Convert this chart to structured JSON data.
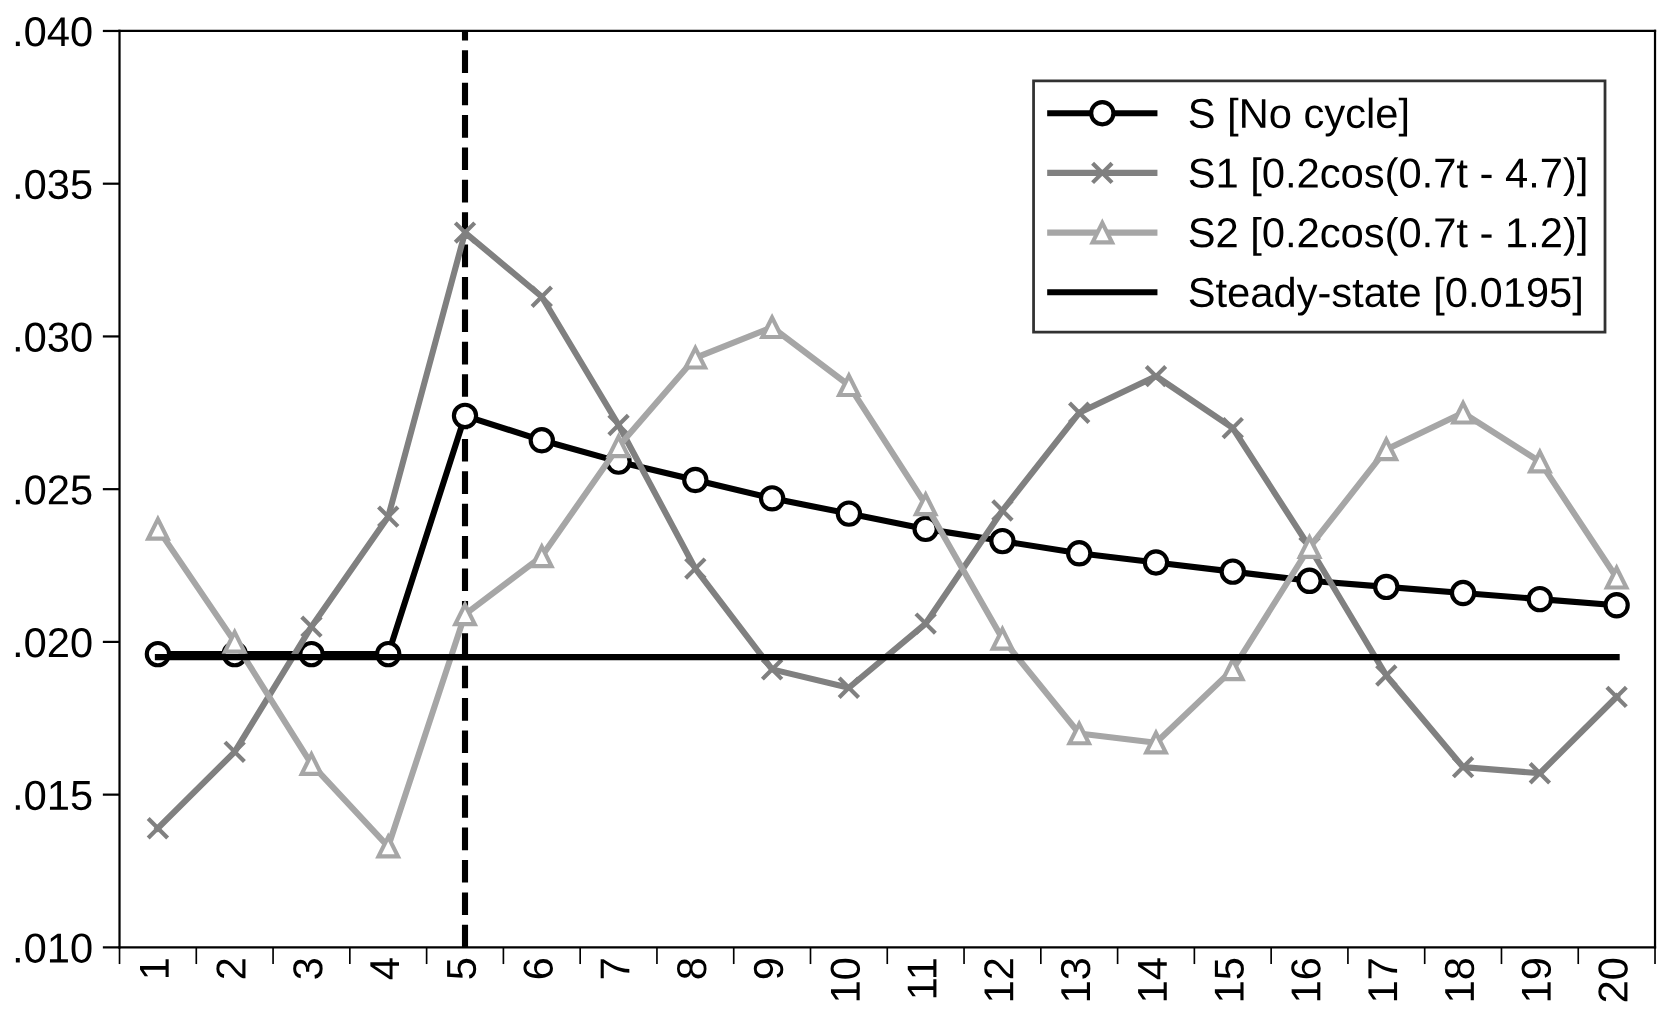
{
  "chart_data": {
    "type": "line",
    "categories": [
      "1",
      "2",
      "3",
      "4",
      "5",
      "6",
      "7",
      "8",
      "9",
      "10",
      "11",
      "12",
      "13",
      "14",
      "15",
      "16",
      "17",
      "18",
      "19",
      "20"
    ],
    "series": [
      {
        "name": "S [No cycle]",
        "color": "#000000",
        "marker": "circle",
        "values": [
          0.0196,
          0.0196,
          0.0196,
          0.0196,
          0.0274,
          0.0266,
          0.0259,
          0.0253,
          0.0247,
          0.0242,
          0.0237,
          0.0233,
          0.0229,
          0.0226,
          0.0223,
          0.022,
          0.0218,
          0.0216,
          0.0214,
          0.0212
        ]
      },
      {
        "name": "S1 [0.2cos(0.7t - 4.7)]",
        "color": "#808080",
        "marker": "cross",
        "values": [
          0.0139,
          0.0164,
          0.0205,
          0.0241,
          0.0334,
          0.0313,
          0.0271,
          0.0224,
          0.0191,
          0.0185,
          0.0206,
          0.0243,
          0.0275,
          0.0287,
          0.027,
          0.0231,
          0.0189,
          0.0159,
          0.0157,
          0.0182
        ]
      },
      {
        "name": "S2 [0.2cos(0.7t - 1.2)]",
        "color": "#a6a6a6",
        "marker": "triangle",
        "values": [
          0.0237,
          0.02,
          0.016,
          0.0133,
          0.0209,
          0.0228,
          0.0264,
          0.0293,
          0.0303,
          0.0284,
          0.0245,
          0.0201,
          0.017,
          0.0167,
          0.0191,
          0.0231,
          0.0263,
          0.0275,
          0.0259,
          0.0221
        ]
      },
      {
        "name": "Steady-state [0.0195]",
        "color": "#000000",
        "marker": "none",
        "values": [
          0.0195,
          0.0195,
          0.0195,
          0.0195,
          0.0195,
          0.0195,
          0.0195,
          0.0195,
          0.0195,
          0.0195,
          0.0195,
          0.0195,
          0.0195,
          0.0195,
          0.0195,
          0.0195,
          0.0195,
          0.0195,
          0.0195,
          0.0195
        ]
      }
    ],
    "ylim": [
      0.01,
      0.04
    ],
    "yticks": [
      {
        "value": 0.01,
        "label": ".010"
      },
      {
        "value": 0.015,
        "label": ".015"
      },
      {
        "value": 0.02,
        "label": ".020"
      },
      {
        "value": 0.025,
        "label": ".025"
      },
      {
        "value": 0.03,
        "label": ".030"
      },
      {
        "value": 0.035,
        "label": ".035"
      },
      {
        "value": 0.04,
        "label": ".040"
      }
    ],
    "ref_lines": [
      {
        "axis": "x",
        "value": "5",
        "color": "#000000",
        "line_style": "dashed"
      }
    ],
    "legend": "top right",
    "grid": false
  }
}
